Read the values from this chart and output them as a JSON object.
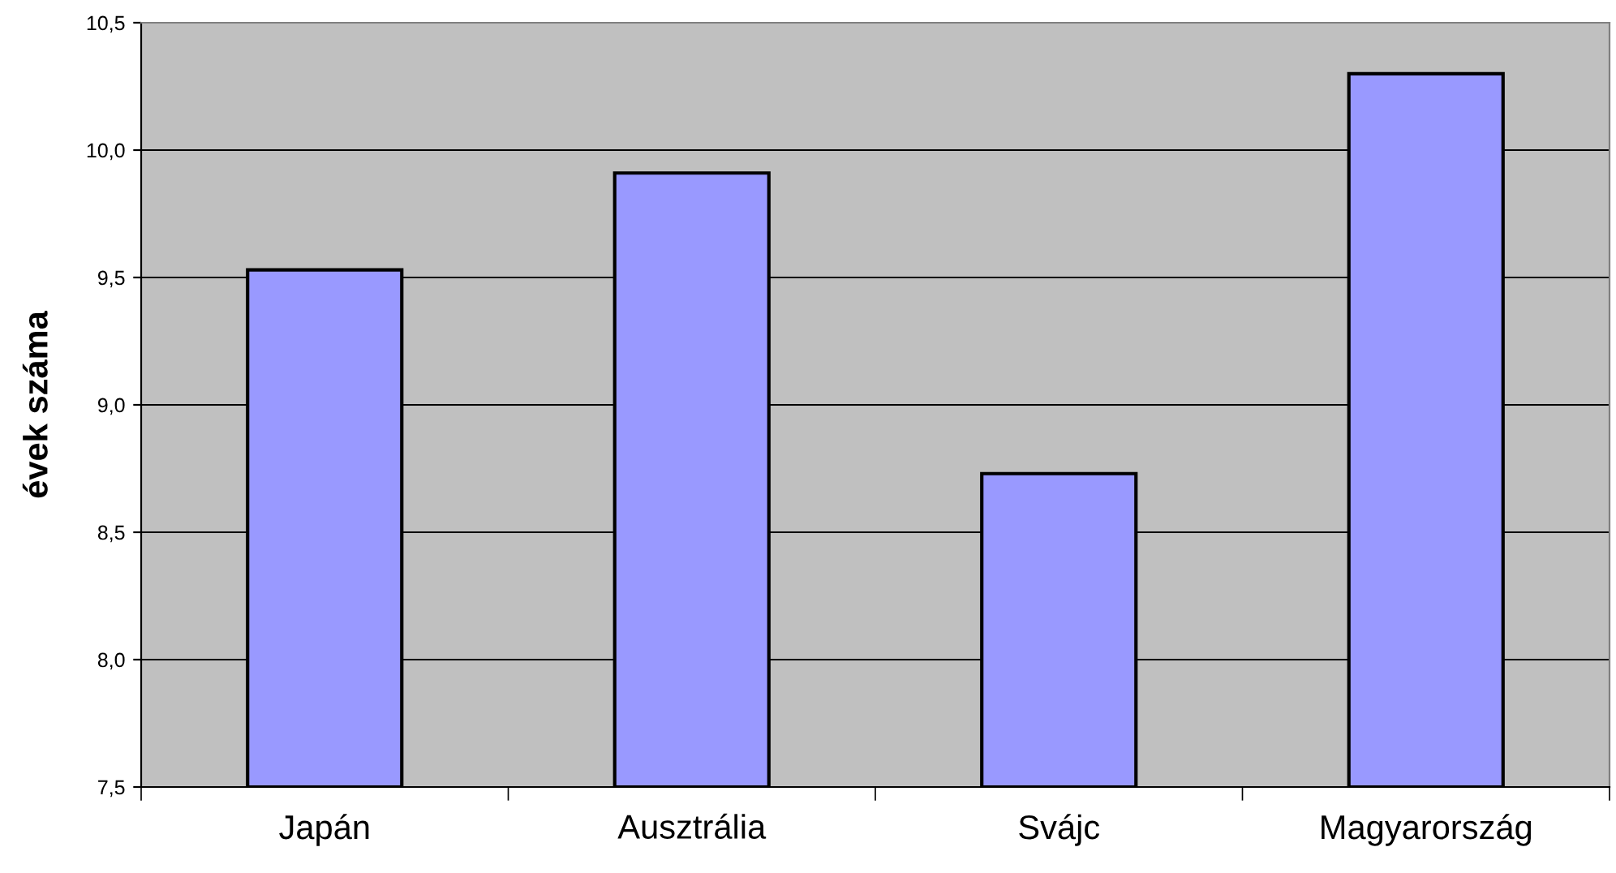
{
  "chart_data": {
    "type": "bar",
    "ylabel": "évek száma",
    "categories": [
      "Japán",
      "Ausztrália",
      "Svájc",
      "Magyarország"
    ],
    "values": [
      9.53,
      9.91,
      8.73,
      10.3
    ],
    "color": "#9999ff",
    "ylim": [
      7.5,
      10.5
    ],
    "yticks": [
      {
        "value": 7.5,
        "label": "7,5"
      },
      {
        "value": 8.0,
        "label": "8,0"
      },
      {
        "value": 8.5,
        "label": "8,5"
      },
      {
        "value": 9.0,
        "label": "9,0"
      },
      {
        "value": 9.5,
        "label": "9,5"
      },
      {
        "value": 10.0,
        "label": "10,0"
      },
      {
        "value": 10.5,
        "label": "10,5"
      }
    ],
    "grid": "y"
  }
}
